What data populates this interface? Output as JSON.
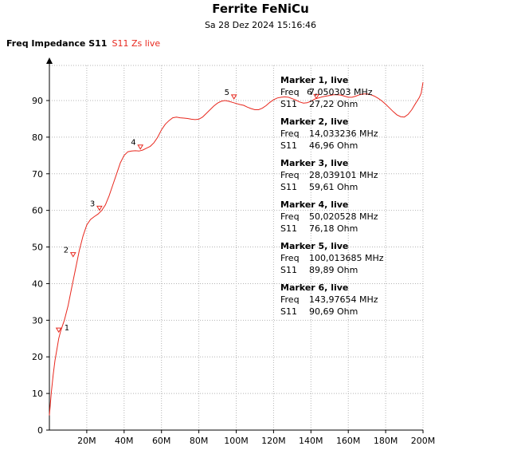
{
  "header": {
    "title": "Ferrite FeNiCu",
    "subtitle": "Sa 28 Dez 2024 15:16:46"
  },
  "legend": {
    "label": "Freq Impedance S11",
    "series_label": "S11 Zs live"
  },
  "colors": {
    "trace": "#e8281e",
    "grid": "#b4b4b4",
    "axis": "#000000"
  },
  "chart_data": {
    "type": "line",
    "title": "Ferrite FeNiCu",
    "xlim": [
      0,
      200
    ],
    "ylim": [
      0,
      100
    ],
    "x_ticks": [
      20,
      40,
      60,
      80,
      100,
      120,
      140,
      160,
      180,
      200
    ],
    "x_tick_labels": [
      "20M",
      "40M",
      "60M",
      "80M",
      "100M",
      "120M",
      "140M",
      "160M",
      "180M",
      "200M"
    ],
    "y_ticks": [
      0,
      10,
      20,
      30,
      40,
      50,
      60,
      70,
      80,
      90
    ],
    "y_tick_labels": [
      "0",
      "10",
      "20",
      "30",
      "40",
      "50",
      "60",
      "70",
      "80",
      "90"
    ],
    "grid": true,
    "series": [
      {
        "x": [
          0,
          1,
          2,
          3,
          4,
          5,
          6,
          7,
          8,
          10,
          12,
          14,
          16,
          18,
          20,
          22,
          24,
          26,
          28,
          30,
          32,
          34,
          36,
          38,
          40,
          42,
          44,
          46,
          48,
          50,
          52,
          54,
          56,
          58,
          60,
          62,
          64,
          66,
          68,
          70,
          72,
          74,
          76,
          78,
          80,
          82,
          84,
          86,
          88,
          90,
          92,
          94,
          96,
          98,
          100,
          102,
          104,
          106,
          108,
          110,
          112,
          114,
          116,
          118,
          120,
          122,
          124,
          126,
          128,
          130,
          132,
          134,
          136,
          138,
          140,
          142,
          144,
          146,
          148,
          150,
          152,
          154,
          156,
          158,
          160,
          162,
          164,
          166,
          168,
          170,
          172,
          174,
          176,
          178,
          180,
          182,
          184,
          186,
          188,
          190,
          192,
          194,
          196,
          198,
          199,
          200
        ],
        "y": [
          4,
          10,
          15,
          19,
          22,
          25,
          27,
          28.5,
          30,
          34,
          39,
          44,
          49,
          53,
          56,
          57.5,
          58.3,
          59,
          60,
          61.5,
          64,
          67,
          70,
          73,
          75,
          76,
          76.2,
          76.3,
          76.2,
          76.5,
          77,
          77.5,
          78.5,
          80,
          82,
          83.5,
          84.5,
          85.3,
          85.5,
          85.3,
          85.2,
          85.1,
          84.9,
          84.8,
          84.9,
          85.5,
          86.5,
          87.5,
          88.5,
          89.3,
          89.8,
          90,
          89.8,
          89.5,
          89.2,
          88.9,
          88.7,
          88.2,
          87.8,
          87.5,
          87.5,
          87.9,
          88.6,
          89.5,
          90.2,
          90.7,
          90.9,
          91,
          90.9,
          90.5,
          90.1,
          89.6,
          89.3,
          89.4,
          89.8,
          90.4,
          90.7,
          91,
          91.2,
          91.4,
          91.6,
          91.6,
          91.5,
          91.2,
          90.9,
          90.9,
          91.2,
          91.6,
          91.8,
          91.8,
          91.6,
          91.2,
          90.6,
          89.9,
          89,
          88,
          87,
          86.1,
          85.6,
          85.5,
          86.2,
          87.5,
          89.2,
          90.8,
          92,
          95
        ]
      }
    ],
    "markers": [
      {
        "id": "1",
        "x": 5.0,
        "y": 27.2
      },
      {
        "id": "2",
        "x": 12.7,
        "y": 47.8
      },
      {
        "id": "3",
        "x": 26.8,
        "y": 60.5
      },
      {
        "id": "4",
        "x": 48.7,
        "y": 77.2
      },
      {
        "id": "5",
        "x": 98.8,
        "y": 90.9
      },
      {
        "id": "6",
        "x": 142.9,
        "y": 91.0
      }
    ],
    "marker_table": [
      {
        "title": "Marker 1, live",
        "freq_label": "Freq",
        "freq": "7,050303 MHz",
        "s11_label": "S11",
        "s11": "27,22 Ohm"
      },
      {
        "title": "Marker 2, live",
        "freq_label": "Freq",
        "freq": "14,033236 MHz",
        "s11_label": "S11",
        "s11": "46,96 Ohm"
      },
      {
        "title": "Marker 3, live",
        "freq_label": "Freq",
        "freq": "28,039101 MHz",
        "s11_label": "S11",
        "s11": "59,61 Ohm"
      },
      {
        "title": "Marker 4, live",
        "freq_label": "Freq",
        "freq": "50,020528 MHz",
        "s11_label": "S11",
        "s11": "76,18 Ohm"
      },
      {
        "title": "Marker 5, live",
        "freq_label": "Freq",
        "freq": "100,013685 MHz",
        "s11_label": "S11",
        "s11": "89,89 Ohm"
      },
      {
        "title": "Marker 6, live",
        "freq_label": "Freq",
        "freq": "143,97654 MHz",
        "s11_label": "S11",
        "s11": "90,69 Ohm"
      }
    ]
  }
}
